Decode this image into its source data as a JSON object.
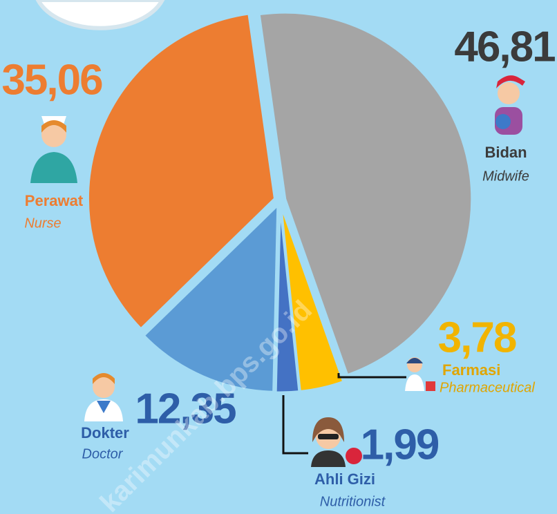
{
  "chart_data": {
    "type": "pie",
    "categories": [
      "Bidan",
      "Farmasi",
      "Ahli Gizi",
      "Dokter",
      "Perawat"
    ],
    "categories_en": [
      "Midwife",
      "Pharmaceutical",
      "Nutritionist",
      "Doctor",
      "Nurse"
    ],
    "values": [
      46.81,
      3.78,
      1.99,
      12.35,
      35.06
    ],
    "value_labels": [
      "46,81",
      "3,78",
      "1,99",
      "12,35",
      "35,06"
    ],
    "colors": [
      "#a5a5a5",
      "#ffc000",
      "#4472c4",
      "#5b9bd5",
      "#ed7d31"
    ],
    "watermark": "karimunkab.bps.go.id"
  }
}
